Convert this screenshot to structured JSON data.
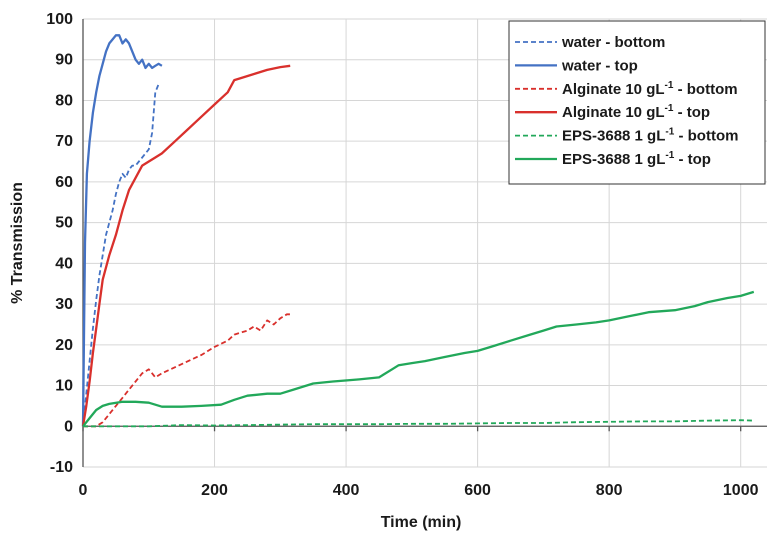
{
  "chart_data": {
    "type": "line",
    "xlabel": "Time (min)",
    "ylabel": "% Transmission",
    "xlim": [
      0,
      1040
    ],
    "ylim": [
      -10,
      100
    ],
    "xticks": [
      0,
      200,
      400,
      600,
      800,
      1000
    ],
    "yticks": [
      -10,
      0,
      10,
      20,
      30,
      40,
      50,
      60,
      70,
      80,
      90,
      100
    ],
    "grid": true,
    "legend_position": "top-right",
    "series": [
      {
        "name": "water - bottom",
        "label_main": "water - bottom",
        "label_sup": "",
        "label_tail": "",
        "color": "#4472C4",
        "dash": "dashed",
        "x": [
          0,
          5,
          10,
          15,
          20,
          25,
          30,
          35,
          40,
          45,
          50,
          55,
          60,
          65,
          70,
          75,
          80,
          85,
          90,
          95,
          100,
          105,
          110,
          115
        ],
        "y": [
          0,
          8,
          16,
          24,
          31,
          37,
          42,
          47,
          50,
          53,
          57,
          60,
          62,
          61,
          63,
          64,
          64,
          65,
          66,
          67,
          68,
          72,
          82,
          84
        ]
      },
      {
        "name": "water - top",
        "label_main": "water - top",
        "label_sup": "",
        "label_tail": "",
        "color": "#4472C4",
        "dash": "solid",
        "x": [
          0,
          3,
          6,
          10,
          15,
          20,
          25,
          30,
          35,
          40,
          45,
          50,
          55,
          60,
          65,
          70,
          75,
          80,
          85,
          90,
          95,
          100,
          105,
          110,
          115,
          120
        ],
        "y": [
          0,
          45,
          62,
          70,
          77,
          82,
          86,
          89,
          92,
          94,
          95,
          96,
          96,
          94,
          95,
          94,
          92,
          90,
          89,
          90,
          88,
          89,
          88,
          88.5,
          89,
          88.5
        ]
      },
      {
        "name": "Alginate 10 gL-1 - bottom",
        "label_main": "Alginate 10 gL",
        "label_sup": "-1",
        "label_tail": " - bottom",
        "color": "#D9302C",
        "dash": "dashed",
        "x": [
          0,
          20,
          30,
          40,
          50,
          60,
          70,
          80,
          90,
          100,
          105,
          110,
          120,
          140,
          160,
          180,
          200,
          220,
          230,
          240,
          250,
          260,
          270,
          280,
          290,
          300,
          310,
          315
        ],
        "y": [
          0,
          0,
          1,
          3,
          5,
          7,
          9,
          11,
          13,
          14,
          13,
          12,
          13,
          14.5,
          16,
          17.5,
          19.5,
          21,
          22.5,
          23,
          23.5,
          24.5,
          23.5,
          26,
          25,
          26.5,
          27.5,
          27.5
        ]
      },
      {
        "name": "Alginate 10 gL-1 - top",
        "label_main": "Alginate 10 gL",
        "label_sup": "-1",
        "label_tail": " - top",
        "color": "#D9302C",
        "dash": "solid",
        "x": [
          0,
          5,
          10,
          15,
          20,
          25,
          30,
          40,
          50,
          60,
          70,
          80,
          90,
          100,
          110,
          120,
          140,
          160,
          180,
          200,
          220,
          230,
          240,
          260,
          280,
          300,
          315
        ],
        "y": [
          0,
          5,
          11,
          18,
          24,
          30,
          36,
          42,
          47,
          53,
          58,
          61,
          64,
          65,
          66,
          67,
          70,
          73,
          76,
          79,
          82,
          85,
          85.5,
          86.5,
          87.5,
          88.2,
          88.5
        ]
      },
      {
        "name": "EPS-3688 1 gL-1 - bottom",
        "label_main": "EPS-3688 1 gL",
        "label_sup": "-1",
        "label_tail": " - bottom",
        "color": "#22A85A",
        "dash": "dashed",
        "x": [
          0,
          50,
          100,
          150,
          200,
          250,
          300,
          350,
          400,
          450,
          500,
          550,
          600,
          650,
          700,
          750,
          800,
          850,
          900,
          950,
          1000,
          1020
        ],
        "y": [
          0,
          0,
          0,
          0.3,
          0.2,
          0.3,
          0.4,
          0.5,
          0.5,
          0.5,
          0.6,
          0.6,
          0.7,
          0.8,
          0.8,
          1.0,
          1.1,
          1.2,
          1.2,
          1.4,
          1.5,
          1.4
        ]
      },
      {
        "name": "EPS-3688 1 gL-1 - top",
        "label_main": "EPS-3688 1 gL",
        "label_sup": "-1",
        "label_tail": " - top",
        "color": "#22A85A",
        "dash": "solid",
        "x": [
          0,
          10,
          20,
          30,
          40,
          60,
          80,
          100,
          120,
          150,
          180,
          210,
          230,
          250,
          280,
          300,
          320,
          350,
          380,
          420,
          450,
          470,
          480,
          500,
          520,
          550,
          580,
          600,
          620,
          650,
          680,
          700,
          720,
          750,
          780,
          800,
          830,
          860,
          900,
          930,
          950,
          980,
          1000,
          1020
        ],
        "y": [
          0,
          2,
          4,
          5,
          5.5,
          6,
          6,
          5.8,
          4.8,
          4.8,
          5,
          5.3,
          6.5,
          7.5,
          8,
          8,
          9,
          10.5,
          11,
          11.5,
          12,
          14,
          15,
          15.5,
          16,
          17,
          18,
          18.5,
          19.5,
          21,
          22.5,
          23.5,
          24.5,
          25,
          25.5,
          26,
          27,
          28,
          28.5,
          29.5,
          30.5,
          31.5,
          32,
          33
        ]
      }
    ]
  }
}
